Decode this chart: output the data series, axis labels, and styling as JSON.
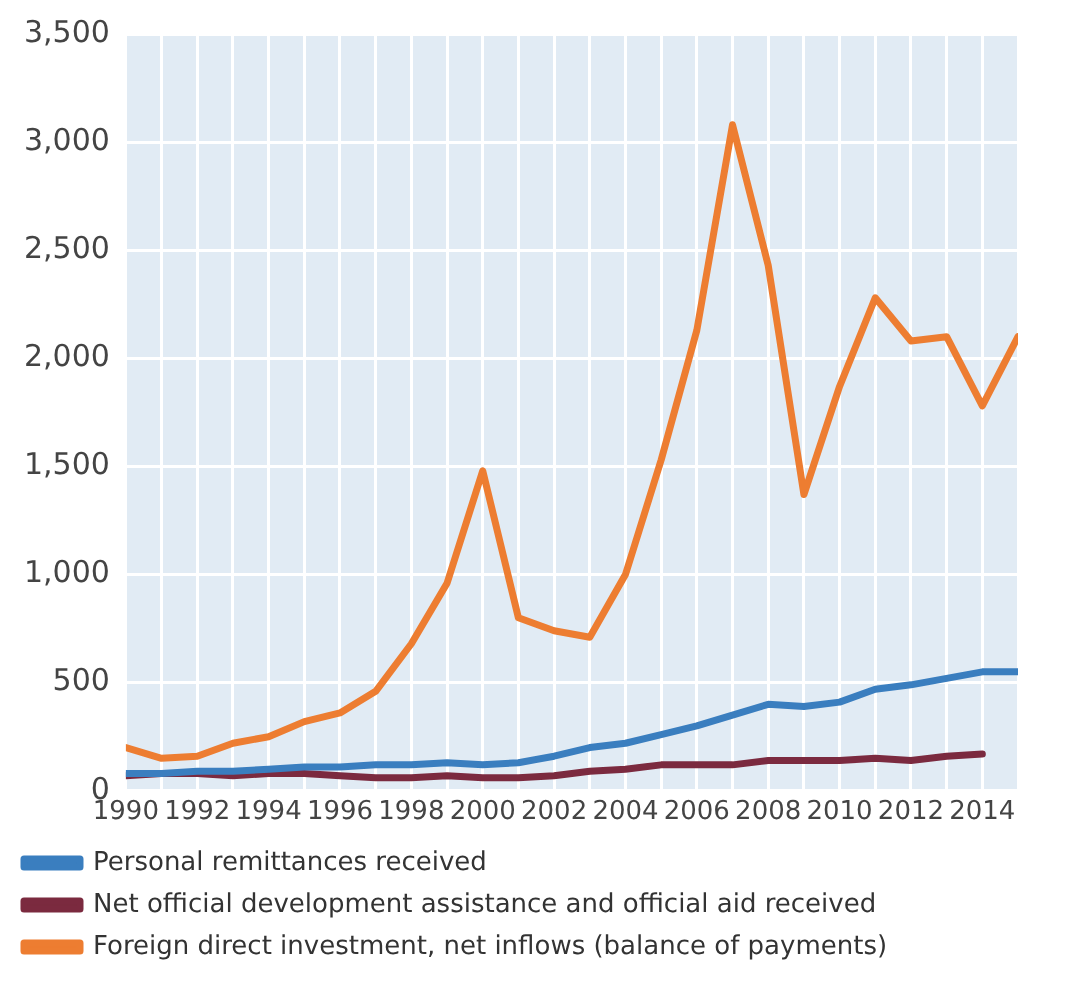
{
  "chart_data": {
    "type": "line",
    "x": [
      1990,
      1991,
      1992,
      1993,
      1994,
      1995,
      1996,
      1997,
      1998,
      1999,
      2000,
      2001,
      2002,
      2003,
      2004,
      2005,
      2006,
      2007,
      2008,
      2009,
      2010,
      2011,
      2012,
      2013,
      2014,
      2015
    ],
    "series": [
      {
        "name": "Personal remittances received",
        "color": "#3a7ebf",
        "values": [
          80,
          80,
          90,
          90,
          100,
          110,
          110,
          120,
          120,
          130,
          120,
          130,
          160,
          200,
          220,
          260,
          300,
          350,
          400,
          390,
          410,
          470,
          490,
          520,
          550,
          550
        ]
      },
      {
        "name": "Net official development assistance and official aid received",
        "color": "#7b2a3f",
        "values": [
          70,
          80,
          80,
          70,
          80,
          80,
          70,
          60,
          60,
          70,
          60,
          60,
          70,
          90,
          100,
          120,
          120,
          120,
          140,
          140,
          140,
          150,
          140,
          160,
          170,
          null
        ]
      },
      {
        "name": "Foreign direct investment, net inflows (balance of payments)",
        "color": "#ed7d31",
        "values": [
          200,
          150,
          160,
          220,
          250,
          320,
          360,
          460,
          680,
          960,
          1480,
          800,
          740,
          710,
          1000,
          1530,
          2130,
          3080,
          2430,
          1370,
          1870,
          2280,
          2080,
          2100,
          1780,
          2100
        ]
      }
    ],
    "xlim": [
      1990,
      2015
    ],
    "xticks": [
      1990,
      {
        "value": 1991,
        "label": null
      },
      1992,
      {
        "value": 1993,
        "label": null
      },
      1994,
      {
        "value": 1995,
        "label": null
      },
      1996,
      {
        "value": 1997,
        "label": null
      },
      1998,
      {
        "value": 1999,
        "label": null
      },
      2000,
      {
        "value": 2001,
        "label": null
      },
      2002,
      {
        "value": 2003,
        "label": null
      },
      2004,
      {
        "value": 2005,
        "label": null
      },
      2006,
      {
        "value": 2007,
        "label": null
      },
      2008,
      {
        "value": 2009,
        "label": null
      },
      2010,
      {
        "value": 2011,
        "label": null
      },
      2012,
      {
        "value": 2013,
        "label": null
      },
      2014,
      {
        "value": 2015,
        "label": null
      }
    ],
    "ylim": [
      0,
      3500
    ],
    "yticks": [
      0,
      {
        "value": 500,
        "label": "500"
      },
      {
        "value": 1000,
        "label": "1,000"
      },
      {
        "value": 1500,
        "label": "1,500"
      },
      {
        "value": 2000,
        "label": "2,000"
      },
      {
        "value": 2500,
        "label": "2,500"
      },
      {
        "value": 3000,
        "label": "3,000"
      },
      {
        "value": 3500,
        "label": "3,500"
      }
    ],
    "grid": true,
    "legend": "bottom",
    "marker": "none",
    "line_style": "solid"
  }
}
